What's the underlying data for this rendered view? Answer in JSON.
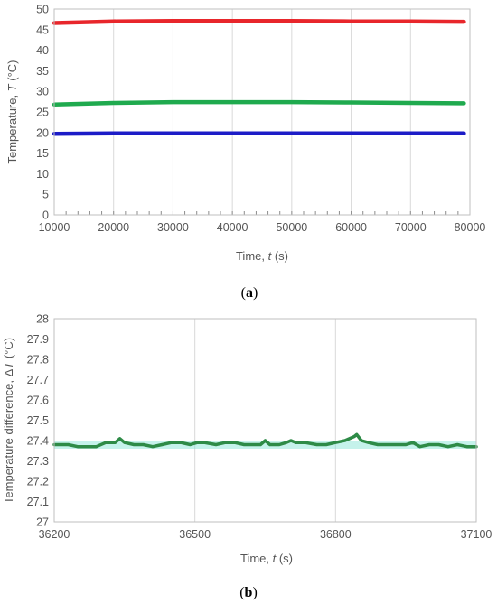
{
  "chart_data": [
    {
      "type": "line",
      "panel_label": {
        "open": "(",
        "letter": "a",
        "close": ")"
      },
      "xlabel": {
        "prefix": "Time, ",
        "symbol": "t",
        "unit": " (s)"
      },
      "ylabel": {
        "prefix": "Temperature, ",
        "symbol": "T",
        "unit": " (°C)"
      },
      "xlim": [
        10000,
        80000
      ],
      "ylim": [
        0,
        50
      ],
      "x_ticks": [
        10000,
        20000,
        30000,
        40000,
        50000,
        60000,
        70000,
        80000
      ],
      "y_ticks": [
        0,
        5,
        10,
        15,
        20,
        25,
        30,
        35,
        40,
        45,
        50
      ],
      "grid": {
        "vertical": true,
        "horizontal": false
      },
      "minor_x_ticks": true,
      "series": [
        {
          "color": "#e8262b",
          "x": [
            10000,
            15000,
            20000,
            30000,
            40000,
            50000,
            60000,
            70000,
            79000
          ],
          "y": [
            46.6,
            46.8,
            47.0,
            47.1,
            47.1,
            47.1,
            47.0,
            47.0,
            46.9
          ]
        },
        {
          "color": "#1faa4e",
          "x": [
            10000,
            15000,
            20000,
            30000,
            40000,
            50000,
            60000,
            70000,
            79000
          ],
          "y": [
            26.8,
            27.0,
            27.2,
            27.4,
            27.4,
            27.4,
            27.3,
            27.2,
            27.1
          ]
        },
        {
          "color": "#1c1cc7",
          "x": [
            10000,
            20000,
            30000,
            40000,
            50000,
            60000,
            70000,
            79000
          ],
          "y": [
            19.7,
            19.8,
            19.8,
            19.8,
            19.8,
            19.8,
            19.8,
            19.8
          ]
        }
      ]
    },
    {
      "type": "line",
      "panel_label": {
        "open": "(",
        "letter": "b",
        "close": ")"
      },
      "xlabel": {
        "prefix": "Time, ",
        "symbol": "t",
        "unit": " (s)"
      },
      "ylabel": {
        "prefix": "Temperature difference, Δ",
        "symbol": "T",
        "unit": " (°C)"
      },
      "xlim": [
        36200,
        37100
      ],
      "ylim": [
        27,
        28
      ],
      "x_ticks": [
        36200,
        36500,
        36800,
        37100
      ],
      "y_ticks": [
        "27",
        "27.1",
        "27.2",
        "27.3",
        "27.4",
        "27.5",
        "27.6",
        "27.7",
        "27.8",
        "27.9",
        "28"
      ],
      "grid": {
        "vertical": true,
        "horizontal": false
      },
      "band": {
        "color": "#7fe3d3",
        "y_range": [
          27.36,
          27.4
        ]
      },
      "series": [
        {
          "color": "#2e8b47",
          "x": [
            36200,
            36215,
            36230,
            36250,
            36270,
            36290,
            36310,
            36330,
            36340,
            36350,
            36370,
            36390,
            36410,
            36430,
            36450,
            36470,
            36490,
            36505,
            36520,
            36545,
            36565,
            36585,
            36605,
            36625,
            36640,
            36650,
            36660,
            36680,
            36695,
            36705,
            36715,
            36735,
            36760,
            36780,
            36800,
            36820,
            36840,
            36845,
            36855,
            36870,
            36890,
            36910,
            36930,
            36950,
            36965,
            36980,
            37000,
            37020,
            37040,
            37060,
            37080,
            37100
          ],
          "y": [
            27.38,
            27.38,
            27.38,
            27.37,
            27.37,
            27.37,
            27.39,
            27.39,
            27.41,
            27.39,
            27.38,
            27.38,
            27.37,
            27.38,
            27.39,
            27.39,
            27.38,
            27.39,
            27.39,
            27.38,
            27.39,
            27.39,
            27.38,
            27.38,
            27.38,
            27.4,
            27.38,
            27.38,
            27.39,
            27.4,
            27.39,
            27.39,
            27.38,
            27.38,
            27.39,
            27.4,
            27.42,
            27.43,
            27.4,
            27.39,
            27.38,
            27.38,
            27.38,
            27.38,
            27.39,
            27.37,
            27.38,
            27.38,
            27.37,
            27.38,
            27.37,
            27.37
          ]
        }
      ]
    }
  ]
}
